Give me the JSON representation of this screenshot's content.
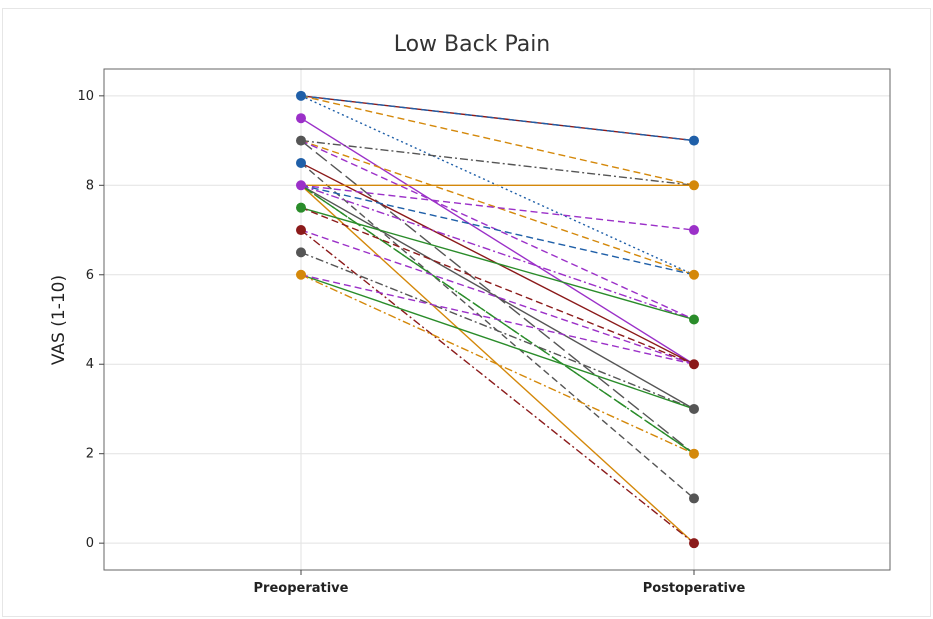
{
  "chart_data": {
    "type": "line",
    "title": "Low Back Pain",
    "xlabel": "",
    "ylabel": "VAS (1-10)",
    "categories": [
      "Preoperative",
      "Postoperative"
    ],
    "yticks": [
      "0",
      "2",
      "4",
      "6",
      "8",
      "10"
    ],
    "ylim": [
      -0.6,
      10.6
    ],
    "grid": true,
    "legend": "none",
    "series": [
      {
        "values": [
          10,
          9
        ],
        "color": "#8b1a1a",
        "dash": "solid"
      },
      {
        "values": [
          10,
          9
        ],
        "color": "#1f5fa8",
        "dash": "dashed"
      },
      {
        "values": [
          10,
          8
        ],
        "color": "#d4880a",
        "dash": "dashed"
      },
      {
        "values": [
          10,
          6
        ],
        "color": "#1f5fa8",
        "dash": "dotted"
      },
      {
        "values": [
          9.5,
          4
        ],
        "color": "#9b30c8",
        "dash": "solid"
      },
      {
        "values": [
          9,
          8
        ],
        "color": "#555555",
        "dash": "dashdot"
      },
      {
        "values": [
          9,
          6
        ],
        "color": "#d4880a",
        "dash": "dashed"
      },
      {
        "values": [
          9,
          2
        ],
        "color": "#555555",
        "dash": "longdash"
      },
      {
        "values": [
          9,
          5
        ],
        "color": "#9b30c8",
        "dash": "dashed"
      },
      {
        "values": [
          8.5,
          1
        ],
        "color": "#555555",
        "dash": "dashed"
      },
      {
        "values": [
          8.5,
          4
        ],
        "color": "#8b1a1a",
        "dash": "solid"
      },
      {
        "values": [
          8,
          8
        ],
        "color": "#d4880a",
        "dash": "solid"
      },
      {
        "values": [
          8,
          7
        ],
        "color": "#9b30c8",
        "dash": "dashed"
      },
      {
        "values": [
          8,
          6
        ],
        "color": "#1f5fa8",
        "dash": "dashed"
      },
      {
        "values": [
          8,
          5
        ],
        "color": "#9b30c8",
        "dash": "dashdot"
      },
      {
        "values": [
          8,
          0
        ],
        "color": "#d4880a",
        "dash": "solid"
      },
      {
        "values": [
          8,
          3
        ],
        "color": "#555555",
        "dash": "solid"
      },
      {
        "values": [
          8,
          2
        ],
        "color": "#2a8c2a",
        "dash": "longdash"
      },
      {
        "values": [
          8,
          2
        ],
        "color": "#2a8c2a",
        "dash": "dashdot"
      },
      {
        "values": [
          7.5,
          5
        ],
        "color": "#2a8c2a",
        "dash": "solid"
      },
      {
        "values": [
          7.5,
          4
        ],
        "color": "#8b1a1a",
        "dash": "dashed"
      },
      {
        "values": [
          7,
          0
        ],
        "color": "#8b1a1a",
        "dash": "dashdot"
      },
      {
        "values": [
          7,
          4
        ],
        "color": "#9b30c8",
        "dash": "dashed"
      },
      {
        "values": [
          6.5,
          3
        ],
        "color": "#555555",
        "dash": "dashdot"
      },
      {
        "values": [
          6,
          3
        ],
        "color": "#2a8c2a",
        "dash": "solid"
      },
      {
        "values": [
          6,
          2
        ],
        "color": "#d4880a",
        "dash": "dashdot"
      },
      {
        "values": [
          6,
          4
        ],
        "color": "#9b30c8",
        "dash": "dashed"
      }
    ],
    "points": [
      {
        "x": 0,
        "y": 10,
        "color": "#1f5fa8"
      },
      {
        "x": 0,
        "y": 9.5,
        "color": "#9b30c8"
      },
      {
        "x": 0,
        "y": 9,
        "color": "#555555"
      },
      {
        "x": 0,
        "y": 8.5,
        "color": "#1f5fa8"
      },
      {
        "x": 0,
        "y": 8,
        "color": "#9b30c8"
      },
      {
        "x": 0,
        "y": 7.5,
        "color": "#2a8c2a"
      },
      {
        "x": 0,
        "y": 7,
        "color": "#8b1a1a"
      },
      {
        "x": 0,
        "y": 6.5,
        "color": "#555555"
      },
      {
        "x": 0,
        "y": 6,
        "color": "#d4880a"
      },
      {
        "x": 1,
        "y": 9,
        "color": "#1f5fa8"
      },
      {
        "x": 1,
        "y": 8,
        "color": "#d4880a"
      },
      {
        "x": 1,
        "y": 7,
        "color": "#9b30c8"
      },
      {
        "x": 1,
        "y": 6,
        "color": "#d4880a"
      },
      {
        "x": 1,
        "y": 5,
        "color": "#2a8c2a"
      },
      {
        "x": 1,
        "y": 4,
        "color": "#8b1a1a"
      },
      {
        "x": 1,
        "y": 3,
        "color": "#555555"
      },
      {
        "x": 1,
        "y": 2,
        "color": "#d4880a"
      },
      {
        "x": 1,
        "y": 1,
        "color": "#555555"
      },
      {
        "x": 1,
        "y": 0,
        "color": "#8b1a1a"
      }
    ]
  }
}
